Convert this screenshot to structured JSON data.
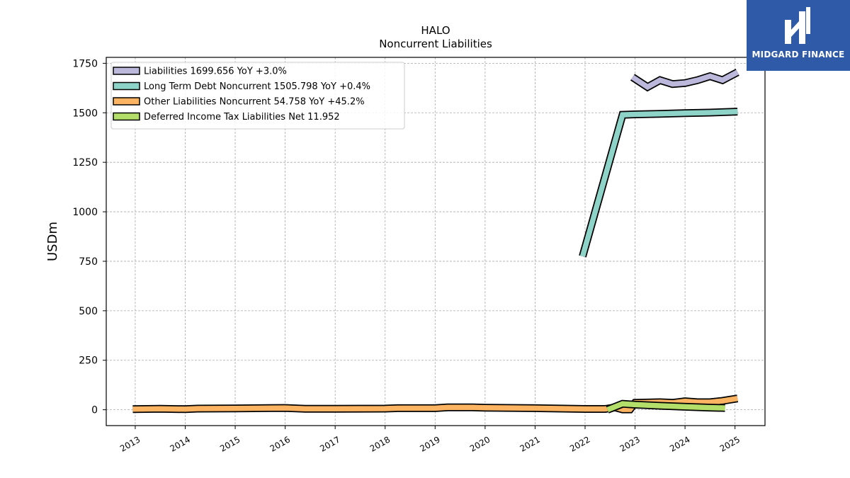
{
  "brand": {
    "name": "MIDGARD FINANCE",
    "bg_color": "#2f5aa8"
  },
  "chart_data": {
    "type": "line",
    "title": "HALO",
    "subtitle": "Noncurrent  Liabilities",
    "ylabel": "USDm",
    "xlabel": "",
    "ylim": [
      -80,
      1780
    ],
    "xlim": [
      2012.42,
      2025.6
    ],
    "y_ticks": [
      0,
      250,
      500,
      750,
      1000,
      1250,
      1500,
      1750
    ],
    "x_ticks": [
      2013,
      2014,
      2015,
      2016,
      2017,
      2018,
      2019,
      2020,
      2021,
      2022,
      2023,
      2024,
      2025
    ],
    "grid": true,
    "legend_position": "top-left",
    "series": [
      {
        "name": "Liabilities",
        "legend_label": "Liabilities  1699.656 YoY +3.0%",
        "color": "#bcb8dc",
        "points": [
          [
            2022.95,
            1680
          ],
          [
            2023.25,
            1630
          ],
          [
            2023.5,
            1665
          ],
          [
            2023.75,
            1645
          ],
          [
            2024.0,
            1650
          ],
          [
            2024.25,
            1665
          ],
          [
            2024.5,
            1685
          ],
          [
            2024.75,
            1665
          ],
          [
            2025.05,
            1705
          ]
        ]
      },
      {
        "name": "Long Term Debt Noncurrent",
        "legend_label": "Long Term Debt Noncurrent  1505.798 YoY +0.4%",
        "color": "#8dd3c7",
        "points": [
          [
            2021.95,
            775
          ],
          [
            2022.75,
            1490
          ],
          [
            2023.0,
            1492
          ],
          [
            2023.5,
            1495
          ],
          [
            2024.0,
            1498
          ],
          [
            2024.5,
            1501
          ],
          [
            2025.05,
            1506
          ]
        ]
      },
      {
        "name": "Other Liabilities Noncurrent",
        "legend_label": "Other Liabilities Noncurrent  54.758 YoY +45.2%",
        "color": "#fdb462",
        "points": [
          [
            2012.95,
            3
          ],
          [
            2013.5,
            5
          ],
          [
            2014.0,
            3
          ],
          [
            2014.25,
            6
          ],
          [
            2015.0,
            7
          ],
          [
            2016.0,
            9
          ],
          [
            2016.4,
            5
          ],
          [
            2017.0,
            5
          ],
          [
            2018.0,
            6
          ],
          [
            2018.25,
            8
          ],
          [
            2019.0,
            8
          ],
          [
            2019.25,
            12
          ],
          [
            2019.75,
            12
          ],
          [
            2020.0,
            10
          ],
          [
            2021.0,
            8
          ],
          [
            2022.0,
            4
          ],
          [
            2022.4,
            4
          ],
          [
            2022.6,
            12
          ],
          [
            2022.75,
            2
          ],
          [
            2022.9,
            2
          ],
          [
            2023.0,
            35
          ],
          [
            2023.5,
            38
          ],
          [
            2023.75,
            35
          ],
          [
            2024.0,
            43
          ],
          [
            2024.25,
            38
          ],
          [
            2024.5,
            38
          ],
          [
            2024.75,
            45
          ],
          [
            2025.05,
            57
          ]
        ]
      },
      {
        "name": "Deferred Income Tax Liabilities Net",
        "legend_label": "Deferred Income Tax Liabilities Net  11.952",
        "color": "#b3de69",
        "points": [
          [
            2022.45,
            0
          ],
          [
            2022.75,
            30
          ],
          [
            2023.0,
            26
          ],
          [
            2023.5,
            20
          ],
          [
            2024.0,
            15
          ],
          [
            2024.5,
            11
          ],
          [
            2024.8,
            9
          ]
        ]
      }
    ]
  }
}
